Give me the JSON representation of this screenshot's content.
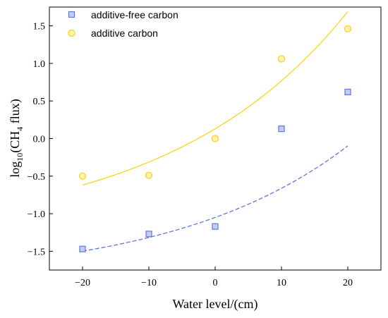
{
  "chart_data": {
    "type": "scatter",
    "xlabel": "Water level/(cm)",
    "ylabel": {
      "prefix": "log",
      "sub1": "10",
      "mid": "(CH",
      "sub2": "4",
      "suffix": " flux)"
    },
    "xlim": [
      -25,
      25
    ],
    "ylim": [
      -1.75,
      1.75
    ],
    "xticks": [
      -20,
      -10,
      0,
      10,
      20
    ],
    "yticks": [
      -1.5,
      -1.0,
      -0.5,
      0.0,
      0.5,
      1.0,
      1.5
    ],
    "xtick_labels": [
      "−20",
      "−10",
      "0",
      "10",
      "20"
    ],
    "ytick_labels": [
      "−1.5",
      "−1.0",
      "−0.5",
      "0.0",
      "0.5",
      "1.0",
      "1.5"
    ],
    "grid": false,
    "legend_position": "top-left",
    "series": [
      {
        "name": "additive-free carbon",
        "marker": "square",
        "color": "#5b79e0",
        "fill": "#c2cdf0",
        "fit_style": "dashed",
        "x": [
          -20,
          -10,
          0,
          10,
          20
        ],
        "y": [
          -1.47,
          -1.27,
          -1.17,
          0.13,
          0.62
        ],
        "fit": {
          "model": "exponential",
          "a": -1.9,
          "b": 0.85,
          "k": 0.0376,
          "x_range": [
            -20,
            20
          ]
        }
      },
      {
        "name": "additive carbon",
        "marker": "circle",
        "color": "#ffd21a",
        "fill": "#fff2b3",
        "fit_style": "solid",
        "x": [
          -20,
          -10,
          0,
          10,
          20
        ],
        "y": [
          -0.5,
          -0.49,
          0.0,
          1.06,
          1.46
        ],
        "fit": {
          "model": "exponential",
          "a": -1.31,
          "b": 1.44,
          "k": 0.0367,
          "x_range": [
            -20,
            20
          ]
        }
      }
    ]
  }
}
